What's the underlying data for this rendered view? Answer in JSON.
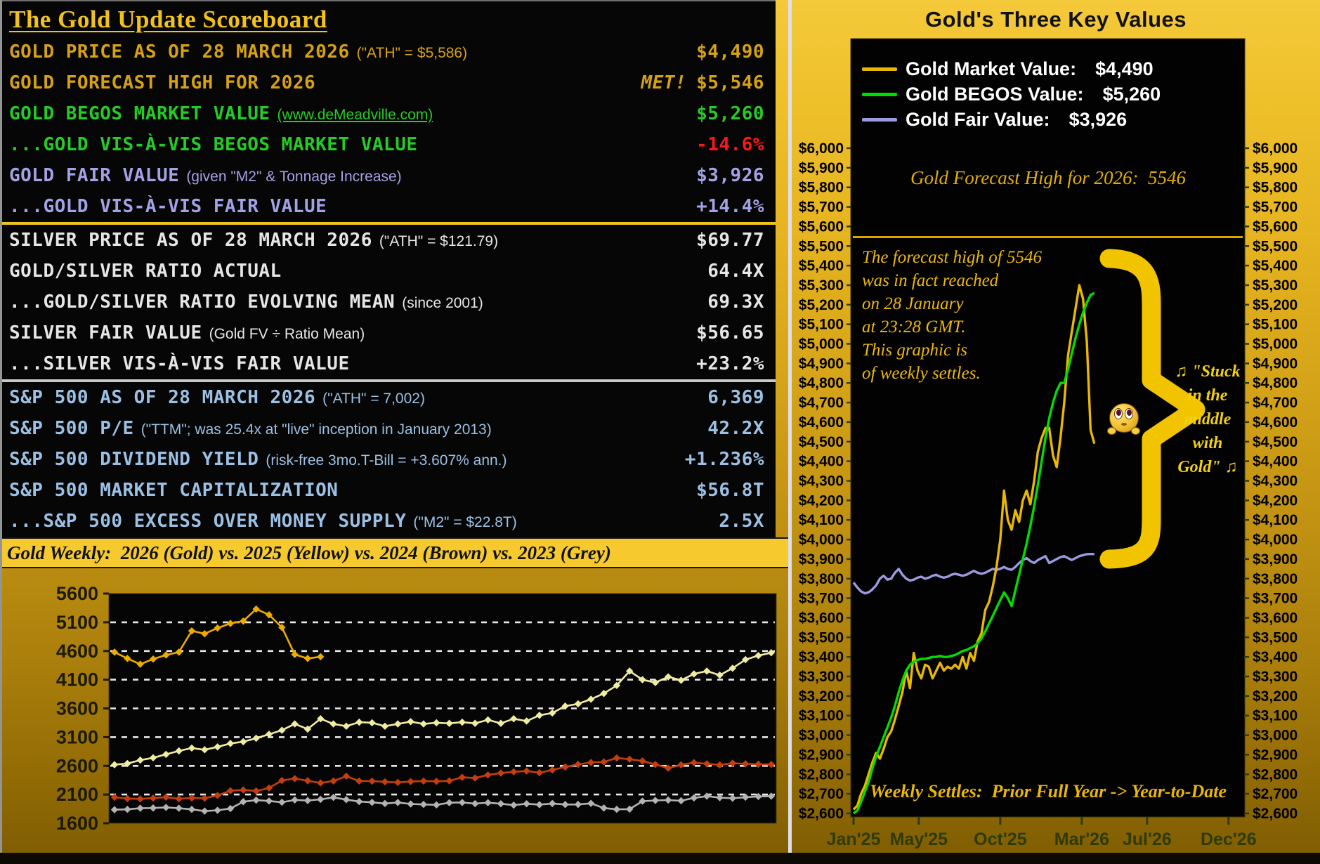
{
  "scoreboard": {
    "title": "The Gold Update Scoreboard",
    "rows": [
      {
        "label": "GOLD PRICE AS OF 28 MARCH 2026",
        "paren": "(\"ATH\" = $5,586)",
        "value": "$4,490",
        "theme": "gold"
      },
      {
        "label": "GOLD FORECAST HIGH FOR 2026",
        "paren": "",
        "prefix": "MET!",
        "value": "$5,546",
        "theme": "gold"
      },
      {
        "label": "GOLD BEGOS MARKET VALUE",
        "paren": "(www.deMeadville.com)",
        "paren_underline": true,
        "value": "$5,260",
        "theme": "green"
      },
      {
        "label": "...GOLD VIS-À-VIS BEGOS MARKET VALUE",
        "paren": "",
        "value": "-14.6%",
        "theme": "green",
        "value_theme": "red"
      },
      {
        "label": "GOLD FAIR VALUE",
        "paren": "(given \"M2\" & Tonnage Increase)",
        "value": "$3,926",
        "theme": "lavender"
      },
      {
        "label": "...GOLD VIS-À-VIS FAIR VALUE",
        "paren": "",
        "value": "+14.4%",
        "theme": "lavender"
      },
      {
        "label": "SILVER PRICE AS OF 28 MARCH 2026",
        "paren": "(\"ATH\" = $121.79)",
        "value": "$69.77",
        "theme": "silver",
        "divider_before": "gold"
      },
      {
        "label": "GOLD/SILVER RATIO ACTUAL",
        "paren": "",
        "value": "64.4X",
        "theme": "silver"
      },
      {
        "label": "...GOLD/SILVER RATIO EVOLVING MEAN",
        "paren": "(since 2001)",
        "value": "69.3X",
        "theme": "silver"
      },
      {
        "label": "SILVER FAIR VALUE",
        "paren": "(Gold FV ÷ Ratio Mean)",
        "value": "$56.65",
        "theme": "silver"
      },
      {
        "label": "...SILVER VIS-À-VIS FAIR VALUE",
        "paren": "",
        "value": "+23.2%",
        "theme": "silver"
      },
      {
        "label": "S&P 500 AS OF 28 MARCH 2026",
        "paren": "(\"ATH\" = 7,002)",
        "value": "6,369",
        "theme": "blue",
        "divider_before": "silver"
      },
      {
        "label": "S&P 500 P/E",
        "paren": "(\"TTM\"; was 25.4x at \"live\" inception in January 2013)",
        "value": "42.2X",
        "theme": "blue"
      },
      {
        "label": "S&P 500 DIVIDEND YIELD",
        "paren": "(risk-free 3mo.T-Bill = +3.607% ann.)",
        "value": "+1.236%",
        "theme": "blue"
      },
      {
        "label": "S&P 500 MARKET CAPITALIZATION",
        "paren": "",
        "value": "$56.8T",
        "theme": "blue"
      },
      {
        "label": "...S&P 500 EXCESS OVER MONEY SUPPLY",
        "paren": "(\"M2\" = $22.8T)",
        "value": "2.5X",
        "theme": "blue"
      }
    ]
  },
  "weekly_band": {
    "text": "Gold Weekly:  2026 (Gold) vs. 2025 (Yellow) vs. 2024 (Brown) vs. 2023 (Grey)"
  },
  "right_panel": {
    "title": "Gold's Three Key Values",
    "legend": [
      {
        "label": "Gold Market Value:",
        "value": "$4,490",
        "color": "#e9b800"
      },
      {
        "label": "Gold BEGOS Value:",
        "value": "$5,260",
        "color": "#00dd00"
      },
      {
        "label": "Gold Fair Value:",
        "value": "$3,926",
        "color": "#9a9ade"
      }
    ],
    "forecast_label": "Gold Forecast High for 2026:  5546",
    "annotation_lines": [
      "The forecast high of 5546",
      "was in fact reached",
      "on 28 January",
      "at 23:28 GMT.",
      "This graphic is",
      "of weekly settles."
    ],
    "song_lines": [
      "♫ \"Stuck",
      "in the",
      "middle",
      "with",
      "Gold\" ♫"
    ],
    "bottom_note": "Weekly Settles:  Prior Full Year -> Year-to-Date"
  },
  "chart_data": [
    {
      "type": "line",
      "title": "Gold Weekly: 2026 (Gold) vs. 2025 (Yellow) vs. 2024 (Brown) vs. 2023 (Grey)",
      "xlabel": "week of year (1-52), no axis labels shown",
      "ylabel": "gold price (USD)",
      "ylim": [
        1600,
        5600
      ],
      "ytick_step": 500,
      "grid": "horizontal dashed white",
      "marker": "diamond",
      "legend_position": "none (colors named in title band)",
      "series": [
        {
          "name": "2023 (Grey)",
          "color": "#b3b3b3",
          "values": [
            1836,
            1842,
            1862,
            1866,
            1876,
            1862,
            1842,
            1812,
            1826,
            1856,
            1976,
            2002,
            1988,
            1966,
            2006,
            1996,
            2016,
            2050,
            2012,
            1978,
            1964,
            1944,
            1962,
            1936,
            1928,
            1920,
            1958,
            1962,
            1942,
            1958,
            1940,
            1916,
            1940,
            1924,
            1944,
            1926,
            1928,
            1946,
            1866,
            1842,
            1846,
            1984,
            1998,
            2004,
            1992,
            2042,
            2072,
            2046,
            2036,
            2054,
            2066,
            2072
          ]
        },
        {
          "name": "2024 (Brown)",
          "color": "#c43e0e",
          "values": [
            2052,
            2030,
            2024,
            2038,
            2054,
            2026,
            2040,
            2036,
            2084,
            2166,
            2180,
            2162,
            2214,
            2346,
            2378,
            2340,
            2302,
            2336,
            2420,
            2336,
            2334,
            2322,
            2312,
            2326,
            2334,
            2330,
            2338,
            2400,
            2388,
            2442,
            2474,
            2496,
            2510,
            2480,
            2528,
            2580,
            2626,
            2658,
            2668,
            2736,
            2716,
            2684,
            2624,
            2560,
            2618,
            2656,
            2636,
            2616,
            2646,
            2636,
            2628,
            2624
          ]
        },
        {
          "name": "2025 (Yellow)",
          "color": "#f0eda2",
          "values": [
            2620,
            2640,
            2700,
            2740,
            2800,
            2860,
            2910,
            2880,
            2930,
            2990,
            3020,
            3080,
            3150,
            3220,
            3330,
            3240,
            3420,
            3330,
            3290,
            3360,
            3350,
            3290,
            3330,
            3370,
            3330,
            3350,
            3340,
            3360,
            3340,
            3400,
            3340,
            3420,
            3380,
            3480,
            3520,
            3640,
            3680,
            3760,
            3860,
            4000,
            4250,
            4100,
            4050,
            4150,
            4090,
            4200,
            4250,
            4180,
            4300,
            4450,
            4520,
            4570
          ]
        },
        {
          "name": "2026 (Gold)",
          "color": "#edab00",
          "values": [
            4580,
            4470,
            4370,
            4460,
            4530,
            4580,
            4950,
            4900,
            5000,
            5080,
            5120,
            5330,
            5230,
            5010,
            4540,
            4470,
            4500
          ]
        }
      ]
    },
    {
      "type": "line",
      "title": "Gold's Three Key Values",
      "x_axis": "weekly, Jan'25 through Dec'26 (data plotted to late Mar'26)",
      "x_labels": [
        "Jan'25",
        "May'25",
        "Oct'25",
        "Mar'26",
        "Jul'26",
        "Dec'26"
      ],
      "x_label_month_index": [
        0,
        4,
        9,
        14,
        18,
        23
      ],
      "x_total_months": 24,
      "ylim": [
        2600,
        6000
      ],
      "ytick_step": 100,
      "ytick_format": "$#,##0 on both sides",
      "grid": "none",
      "forecast_line_value": 5546,
      "series": [
        {
          "name": "Gold Fair Value",
          "color": "#9a9ade",
          "end_value": 3926,
          "values": [
            3780,
            3755,
            3735,
            3725,
            3730,
            3745,
            3765,
            3800,
            3815,
            3795,
            3800,
            3830,
            3850,
            3820,
            3800,
            3790,
            3795,
            3805,
            3810,
            3800,
            3805,
            3815,
            3820,
            3810,
            3805,
            3810,
            3820,
            3825,
            3820,
            3815,
            3820,
            3830,
            3840,
            3830,
            3825,
            3830,
            3840,
            3850,
            3845,
            3850,
            3860,
            3850,
            3845,
            3860,
            3880,
            3895,
            3905,
            3890,
            3880,
            3895,
            3905,
            3915,
            3880,
            3890,
            3900,
            3910,
            3915,
            3905,
            3895,
            3905,
            3915,
            3920,
            3925,
            3926,
            3926
          ]
        },
        {
          "name": "Gold Market Value",
          "color": "#e9b800",
          "end_value": 4490,
          "values": [
            2620,
            2640,
            2700,
            2740,
            2800,
            2860,
            2910,
            2880,
            2930,
            2990,
            3020,
            3080,
            3150,
            3220,
            3330,
            3240,
            3420,
            3330,
            3290,
            3360,
            3350,
            3290,
            3330,
            3370,
            3330,
            3350,
            3340,
            3360,
            3340,
            3400,
            3340,
            3420,
            3380,
            3480,
            3520,
            3640,
            3680,
            3760,
            3860,
            4000,
            4250,
            4100,
            4050,
            4150,
            4090,
            4200,
            4250,
            4180,
            4300,
            4450,
            4520,
            4570,
            4570,
            4430,
            4370,
            4520,
            4700,
            4940,
            5060,
            5180,
            5300,
            5230,
            5010,
            4560,
            4490
          ]
        },
        {
          "name": "Gold BEGOS Value",
          "color": "#00dd00",
          "end_value": 5260,
          "values": [
            2600,
            2615,
            2660,
            2710,
            2760,
            2830,
            2890,
            2940,
            2990,
            3040,
            3090,
            3150,
            3220,
            3280,
            3330,
            3360,
            3375,
            3385,
            3390,
            3390,
            3395,
            3400,
            3400,
            3405,
            3400,
            3400,
            3405,
            3410,
            3420,
            3430,
            3435,
            3445,
            3455,
            3470,
            3495,
            3530,
            3570,
            3610,
            3650,
            3690,
            3730,
            3700,
            3660,
            3740,
            3820,
            3900,
            3980,
            4070,
            4170,
            4280,
            4400,
            4520,
            4620,
            4700,
            4760,
            4800,
            4800,
            4870,
            4950,
            5030,
            5100,
            5160,
            5210,
            5250,
            5260
          ]
        }
      ]
    }
  ]
}
